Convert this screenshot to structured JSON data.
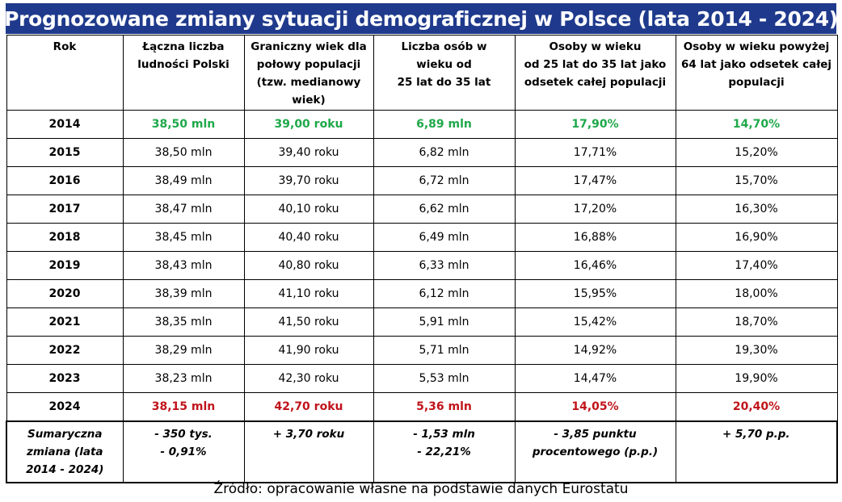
{
  "title": "Prognozowane zmiany sytuacji demograficznej w Polsce (lata 2014 - 2024)",
  "headers": [
    "Rok",
    "Łączna liczba\nludności Polski",
    "Graniczny wiek dla\npołowy populacji\n(tzw. medianowy\nwiek)",
    "Liczba osób w\nwieku od\n25 lat do 35 lat",
    "Osoby w wieku\nod 25 lat do 35 lat jako\nodsetek całej populacji",
    "Osoby w wieku powyżej\n64 lat jako odsetek całej\npopulacji"
  ],
  "rows": [
    [
      "2014",
      "38,50 mln",
      "39,00 roku",
      "6,89 mln",
      "17,90%",
      "14,70%"
    ],
    [
      "2015",
      "38,50 mln",
      "39,40 roku",
      "6,82 mln",
      "17,71%",
      "15,20%"
    ],
    [
      "2016",
      "38,49 mln",
      "39,70 roku",
      "6,72 mln",
      "17,47%",
      "15,70%"
    ],
    [
      "2017",
      "38,47 mln",
      "40,10 roku",
      "6,62 mln",
      "17,20%",
      "16,30%"
    ],
    [
      "2018",
      "38,45 mln",
      "40,40 roku",
      "6,49 mln",
      "16,88%",
      "16,90%"
    ],
    [
      "2019",
      "38,43 mln",
      "40,80 roku",
      "6,33 mln",
      "16,46%",
      "17,40%"
    ],
    [
      "2020",
      "38,39 mln",
      "41,10 roku",
      "6,12 mln",
      "15,95%",
      "18,00%"
    ],
    [
      "2021",
      "38,35 mln",
      "41,50 roku",
      "5,91 mln",
      "15,42%",
      "18,70%"
    ],
    [
      "2022",
      "38,29 mln",
      "41,90 roku",
      "5,71 mln",
      "14,92%",
      "19,30%"
    ],
    [
      "2023",
      "38,23 mln",
      "42,30 roku",
      "5,53 mln",
      "14,47%",
      "19,90%"
    ],
    [
      "2024",
      "38,15 mln",
      "42,70 roku",
      "5,36 mln",
      "14,05%",
      "20,40%"
    ]
  ],
  "summary": [
    "Sumaryczna\nzmiana (lata\n2014 - 2024)",
    "- 350 tys.\n- 0,91%",
    "+ 3,70 roku",
    "- 1,53 mln\n- 22,21%",
    "- 3,85 punktu\nprocentowego (p.p.)",
    "+ 5,70 p.p."
  ],
  "source": "Źródło: opracowanie własne na podstawie danych Eurostatu",
  "colors": {
    "title_bg": "#1f3a8c",
    "start_value": "#1fa84a",
    "end_value": "#c0141b"
  }
}
